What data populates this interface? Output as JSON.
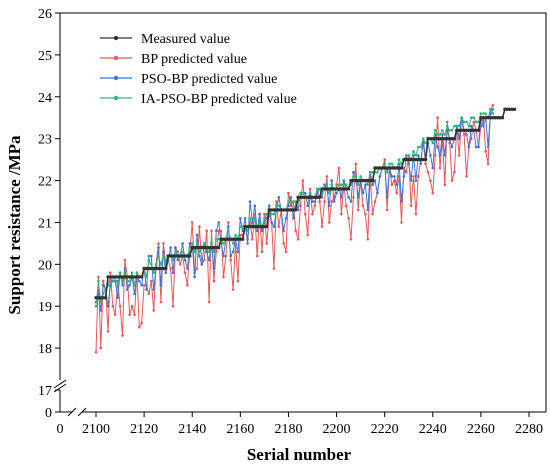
{
  "chart_data": {
    "type": "line",
    "xlabel": "Serial number",
    "ylabel": "Support resistance /MPa",
    "x_axis": {
      "range": [
        2100,
        2280
      ],
      "ticks": [
        2100,
        2120,
        2140,
        2160,
        2180,
        2200,
        2220,
        2240,
        2260,
        2280
      ],
      "extra_ticks": [
        0
      ],
      "break_between": [
        0,
        2100
      ]
    },
    "y_axis": {
      "range": [
        17,
        26
      ],
      "ticks": [
        17,
        18,
        19,
        20,
        21,
        22,
        23,
        24,
        25,
        26
      ],
      "extra_ticks": [
        0
      ],
      "break_between": [
        0,
        17
      ]
    },
    "legend_position": "top-left",
    "x_start": 2100,
    "x_step": 1,
    "series": [
      {
        "name": "Measured value",
        "color": "#333333",
        "values": [
          19.2,
          19.2,
          19.2,
          19.2,
          19.2,
          19.7,
          19.7,
          19.7,
          19.7,
          19.7,
          19.7,
          19.7,
          19.7,
          19.7,
          19.7,
          19.7,
          19.7,
          19.7,
          19.7,
          19.7,
          19.9,
          19.9,
          19.9,
          19.9,
          19.9,
          19.9,
          19.9,
          19.9,
          19.9,
          19.9,
          20.2,
          20.2,
          20.2,
          20.2,
          20.2,
          20.2,
          20.2,
          20.2,
          20.2,
          20.2,
          20.4,
          20.4,
          20.4,
          20.4,
          20.4,
          20.4,
          20.4,
          20.4,
          20.4,
          20.4,
          20.4,
          20.4,
          20.6,
          20.6,
          20.6,
          20.6,
          20.6,
          20.6,
          20.6,
          20.6,
          20.6,
          20.6,
          20.9,
          20.9,
          20.9,
          20.9,
          20.9,
          20.9,
          20.9,
          20.9,
          20.9,
          20.9,
          21.3,
          21.3,
          21.3,
          21.3,
          21.3,
          21.3,
          21.3,
          21.3,
          21.3,
          21.3,
          21.3,
          21.3,
          21.6,
          21.6,
          21.6,
          21.6,
          21.6,
          21.6,
          21.6,
          21.6,
          21.6,
          21.6,
          21.8,
          21.8,
          21.8,
          21.8,
          21.8,
          21.8,
          21.8,
          21.8,
          21.8,
          21.8,
          21.8,
          21.8,
          22.0,
          22.0,
          22.0,
          22.0,
          22.0,
          22.0,
          22.0,
          22.0,
          22.0,
          22.0,
          22.3,
          22.3,
          22.3,
          22.3,
          22.3,
          22.3,
          22.3,
          22.3,
          22.3,
          22.3,
          22.3,
          22.3,
          22.5,
          22.5,
          22.5,
          22.5,
          22.5,
          22.5,
          22.5,
          22.5,
          22.5,
          22.5,
          23.0,
          23.0,
          23.0,
          23.0,
          23.0,
          23.0,
          23.0,
          23.0,
          23.0,
          23.0,
          23.0,
          23.0,
          23.2,
          23.2,
          23.2,
          23.2,
          23.2,
          23.2,
          23.2,
          23.2,
          23.2,
          23.2,
          23.5,
          23.5,
          23.5,
          23.5,
          23.5,
          23.5,
          23.5,
          23.5,
          23.5,
          23.5,
          23.7,
          23.7,
          23.7,
          23.7,
          23.7
        ]
      },
      {
        "name": "BP predicted value",
        "color": "#e8585a",
        "values": [
          17.9,
          19.7,
          18.0,
          19.6,
          19.4,
          18.4,
          19.8,
          19.0,
          18.8,
          19.6,
          19.0,
          18.3,
          20.1,
          19.7,
          18.8,
          19.0,
          18.8,
          19.8,
          18.5,
          18.6,
          19.5,
          19.5,
          19.3,
          19.6,
          18.9,
          20.0,
          20.5,
          19.1,
          20.5,
          20.0,
          20.1,
          19.9,
          19.0,
          20.4,
          20.3,
          20.0,
          20.2,
          19.8,
          19.5,
          20.3,
          21.0,
          19.8,
          19.9,
          20.9,
          20.0,
          20.1,
          20.8,
          19.1,
          20.8,
          19.6,
          20.3,
          20.8,
          20.8,
          19.7,
          20.2,
          21.0,
          20.1,
          19.4,
          20.5,
          19.6,
          20.7,
          20.7,
          20.9,
          20.6,
          21.0,
          20.6,
          21.2,
          20.2,
          21.2,
          20.3,
          21.2,
          20.5,
          21.2,
          21.0,
          19.9,
          21.5,
          20.9,
          21.3,
          20.5,
          20.3,
          21.7,
          21.4,
          21.5,
          20.8,
          20.6,
          21.4,
          22.0,
          21.2,
          20.7,
          21.8,
          21.2,
          21.4,
          21.8,
          21.5,
          20.9,
          21.5,
          22.1,
          21.0,
          21.5,
          21.6,
          21.9,
          22.3,
          21.2,
          21.9,
          21.4,
          21.1,
          20.6,
          21.6,
          22.4,
          21.3,
          22.0,
          21.4,
          21.2,
          20.6,
          22.1,
          21.2,
          21.5,
          21.7,
          22.1,
          22.3,
          22.5,
          21.3,
          22.3,
          21.9,
          22.0,
          21.7,
          22.1,
          21.0,
          22.3,
          22.2,
          22.6,
          21.4,
          22.1,
          21.2,
          22.1,
          22.5,
          22.9,
          22.4,
          22.2,
          22.0,
          21.7,
          22.6,
          23.5,
          22.3,
          23.0,
          21.9,
          23.4,
          22.9,
          22.0,
          22.2,
          23.3,
          22.6,
          23.5,
          23.1,
          22.1,
          22.8,
          23.0,
          23.4,
          23.2,
          22.8,
          23.3,
          23.5,
          22.7,
          22.4,
          23.7,
          23.8
        ]
      },
      {
        "name": "PSO-BP predicted value",
        "color": "#3e74d4",
        "values": [
          19.1,
          19.3,
          18.9,
          19.5,
          19.4,
          19.0,
          19.5,
          19.6,
          19.6,
          19.2,
          19.8,
          19.5,
          19.9,
          19.4,
          19.5,
          19.7,
          19.3,
          19.7,
          19.6,
          19.5,
          19.9,
          19.4,
          20.2,
          20.2,
          19.4,
          19.9,
          20.4,
          19.5,
          20.3,
          19.8,
          20.1,
          20.4,
          19.8,
          20.4,
          20.1,
          20.2,
          20.5,
          20.1,
          19.9,
          20.5,
          20.5,
          19.7,
          20.7,
          20.2,
          20.0,
          20.5,
          20.3,
          20.1,
          20.5,
          19.9,
          20.8,
          21.0,
          20.5,
          20.2,
          20.6,
          20.9,
          20.2,
          20.3,
          20.6,
          20.3,
          21.1,
          20.8,
          21.1,
          20.5,
          21.5,
          21.0,
          21.4,
          20.8,
          21.2,
          20.8,
          21.0,
          21.1,
          21.4,
          21.0,
          20.9,
          21.3,
          21.6,
          21.3,
          20.8,
          21.1,
          21.4,
          21.6,
          21.1,
          21.5,
          21.3,
          21.7,
          21.7,
          21.7,
          21.4,
          21.7,
          21.5,
          21.5,
          21.7,
          21.8,
          21.6,
          21.9,
          21.8,
          21.4,
          22.0,
          21.5,
          21.7,
          21.8,
          21.6,
          22.0,
          21.8,
          21.6,
          21.5,
          22.2,
          22.1,
          21.6,
          22.0,
          21.7,
          21.9,
          21.3,
          22.2,
          21.9,
          22.0,
          21.7,
          22.1,
          22.3,
          22.4,
          21.6,
          22.3,
          22.1,
          22.1,
          21.9,
          22.4,
          21.5,
          22.1,
          22.6,
          22.4,
          22.0,
          22.6,
          22.0,
          22.6,
          22.4,
          23.0,
          22.5,
          22.9,
          22.6,
          22.3,
          23.1,
          22.8,
          22.6,
          23.1,
          22.6,
          23.2,
          23.0,
          22.8,
          23.0,
          23.3,
          23.0,
          23.5,
          23.2,
          23.1,
          22.8,
          23.3,
          23.2,
          22.8,
          22.8,
          23.5,
          23.3,
          23.5,
          22.8,
          23.6,
          23.7
        ]
      },
      {
        "name": "IA-PSO-BP predicted value",
        "color": "#36b37e",
        "values": [
          19.0,
          19.6,
          19.1,
          19.3,
          19.4,
          19.5,
          19.7,
          19.6,
          19.7,
          19.5,
          19.8,
          19.6,
          19.8,
          19.6,
          19.6,
          19.8,
          19.5,
          19.8,
          19.7,
          19.7,
          19.9,
          19.7,
          20.1,
          20.0,
          19.8,
          20.0,
          20.2,
          20.0,
          20.2,
          20.1,
          20.2,
          20.2,
          20.1,
          20.3,
          20.2,
          20.2,
          20.3,
          20.2,
          20.2,
          20.4,
          20.5,
          20.3,
          20.5,
          20.3,
          20.4,
          20.5,
          20.4,
          20.3,
          20.5,
          20.3,
          20.6,
          20.6,
          20.6,
          20.5,
          20.6,
          20.8,
          20.6,
          20.5,
          20.7,
          20.6,
          20.9,
          20.9,
          20.9,
          20.8,
          21.1,
          20.9,
          21.1,
          20.9,
          21.0,
          20.9,
          21.1,
          21.2,
          21.3,
          21.2,
          21.2,
          21.4,
          21.4,
          21.3,
          21.3,
          21.3,
          21.5,
          21.5,
          21.5,
          21.5,
          21.5,
          21.7,
          21.7,
          21.6,
          21.6,
          21.7,
          21.6,
          21.6,
          21.8,
          21.8,
          21.7,
          21.8,
          21.9,
          21.7,
          21.9,
          21.8,
          21.8,
          21.9,
          21.9,
          21.9,
          21.9,
          21.8,
          21.9,
          22.1,
          22.1,
          21.9,
          22.1,
          22.0,
          22.0,
          21.9,
          22.2,
          22.2,
          22.2,
          22.2,
          22.3,
          22.3,
          22.4,
          22.2,
          22.4,
          22.4,
          22.3,
          22.3,
          22.5,
          22.4,
          22.5,
          22.6,
          22.6,
          22.5,
          22.7,
          22.6,
          22.8,
          22.8,
          23.0,
          22.9,
          23.0,
          23.0,
          22.9,
          23.2,
          23.1,
          23.1,
          23.2,
          23.1,
          23.3,
          23.2,
          23.2,
          23.3,
          23.3,
          23.3,
          23.5,
          23.4,
          23.4,
          23.3,
          23.5,
          23.5,
          23.4,
          23.4,
          23.6,
          23.6,
          23.6,
          23.5,
          23.7,
          23.6
        ]
      }
    ]
  }
}
